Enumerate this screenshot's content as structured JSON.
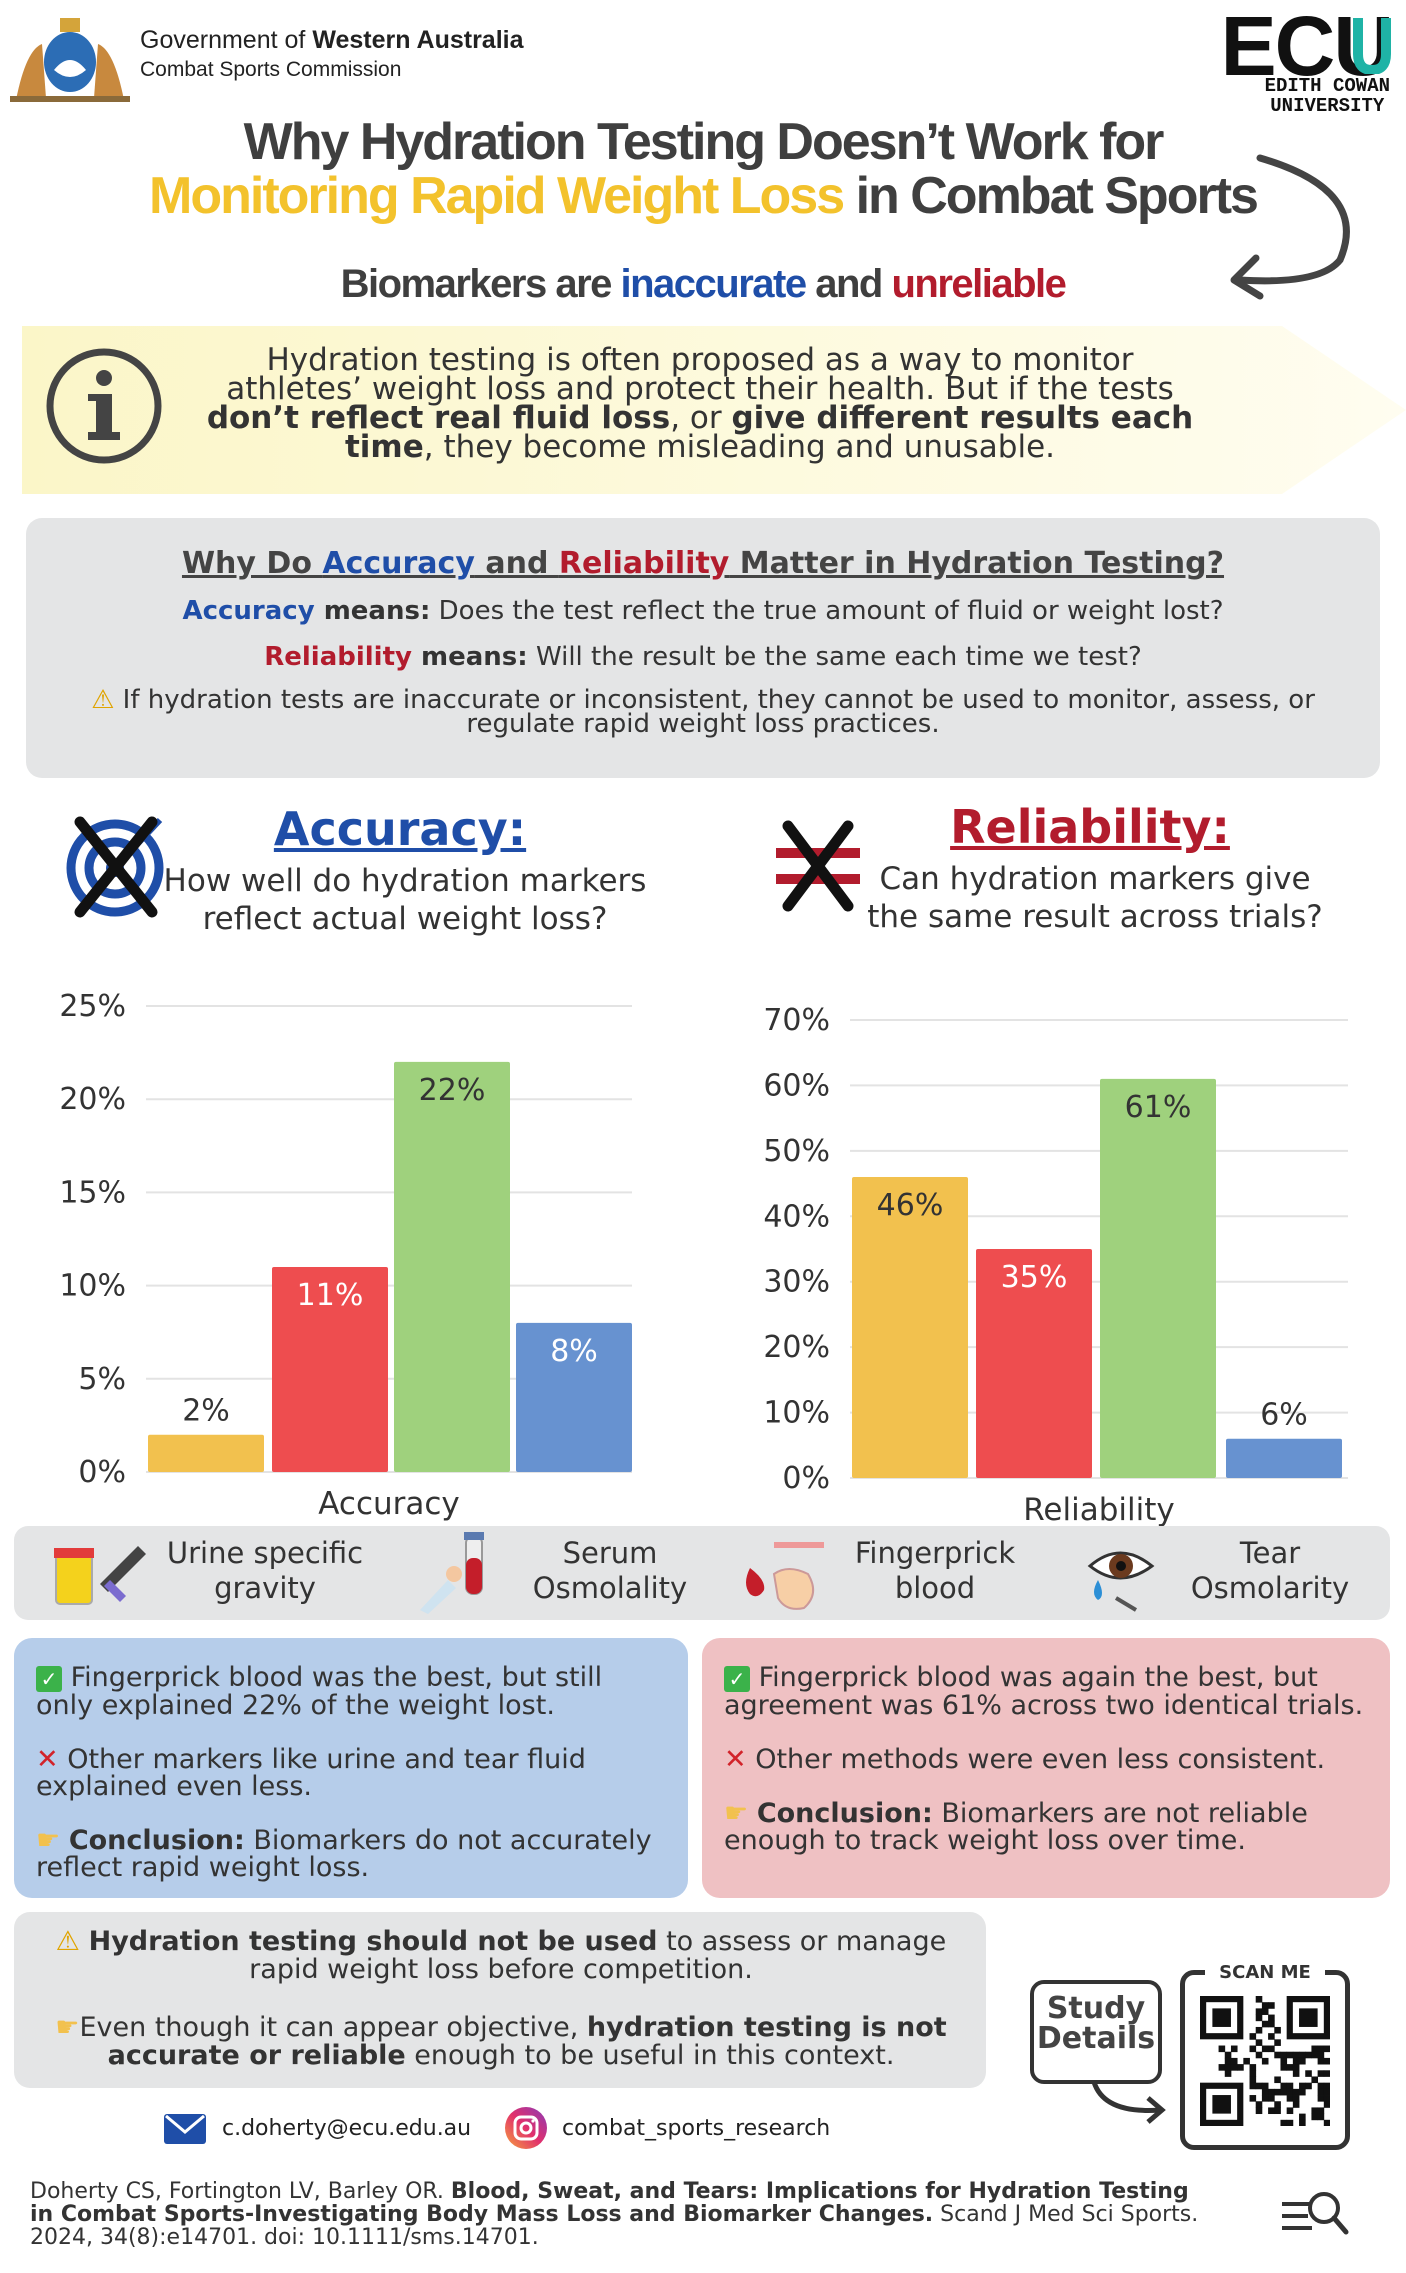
{
  "header": {
    "gov_prefix": "Government of ",
    "gov_bold": "Western Australia",
    "gov_dept": "Combat Sports Commission",
    "ecu_logo": "ECU",
    "ecu_name_1": "EDITH COWAN",
    "ecu_name_2": "UNIVERSITY"
  },
  "title": {
    "line1": "Why Hydration Testing Doesn’t Work for",
    "line2_highlight": "Monitoring Rapid Weight Loss",
    "line2_rest": " in Combat Sports"
  },
  "subtitle": {
    "part1": "Biomarkers are ",
    "part2": "inaccurate",
    "part3": " and ",
    "part4": "unreliable"
  },
  "info": {
    "t1": "Hydration testing is often proposed as a way to monitor athletes’ weight loss and protect their health. But if the tests ",
    "t2": "don’t reflect real fluid loss",
    "t3": ", or ",
    "t4": "give different results each time",
    "t5": ", they become misleading and unusable."
  },
  "why": {
    "h1": "Why Do ",
    "h2": "Accuracy",
    "h3": " and ",
    "h4": "Reliability",
    "h5": " Matter in Hydration Testing?",
    "acc_term": "Accuracy",
    "acc_means": " means:",
    "acc_text": " Does the test reflect the true amount of fluid or weight lost?",
    "rel_term": "Reliability",
    "rel_means": " means:",
    "rel_text": " Will the result be the same each time we test?",
    "warn_text": "If hydration tests are inaccurate or inconsistent, they cannot be used to monitor, assess, or regulate rapid weight loss practices."
  },
  "accuracy_section": {
    "title": "Accuracy:",
    "question_1": "How well do hydration markers",
    "question_2": "reflect actual weight loss?"
  },
  "reliability_section": {
    "title": "Reliability:",
    "question_1": "Can hydration markers give",
    "question_2": "the same result across trials?"
  },
  "chart_data": [
    {
      "type": "bar",
      "xlabel": "Accuracy",
      "yticks": [
        "0%",
        "5%",
        "10%",
        "15%",
        "20%",
        "25%"
      ],
      "ylim": [
        0,
        25
      ],
      "categories": [
        "Urine specific gravity",
        "Serum Osmolality",
        "Fingerprick blood",
        "Tear Osmolarity"
      ],
      "values": [
        2,
        11,
        22,
        8
      ],
      "labels": [
        "2%",
        "11%",
        "22%",
        "8%"
      ],
      "colors": [
        "#f2c14e",
        "#ee4d4f",
        "#9fd17d",
        "#6792d0"
      ]
    },
    {
      "type": "bar",
      "xlabel": "Reliability",
      "yticks": [
        "0%",
        "10%",
        "20%",
        "30%",
        "40%",
        "50%",
        "60%",
        "70%"
      ],
      "ylim": [
        0,
        70
      ],
      "categories": [
        "Urine specific gravity",
        "Serum Osmolality",
        "Fingerprick blood",
        "Tear Osmolarity"
      ],
      "values": [
        46,
        35,
        61,
        6
      ],
      "labels": [
        "46%",
        "35%",
        "61%",
        "6%"
      ],
      "colors": [
        "#f2c14e",
        "#ee4d4f",
        "#9fd17d",
        "#6792d0"
      ]
    }
  ],
  "legend": {
    "urine_1": "Urine specific",
    "urine_2": "gravity",
    "serum_1": "Serum",
    "serum_2": "Osmolality",
    "finger_1": "Fingerprick",
    "finger_2": "blood",
    "tear_1": "Tear",
    "tear_2": "Osmolarity"
  },
  "acc_box": {
    "l1": "Fingerprick blood was the best, but still only explained 22% of the weight lost.",
    "l2": "Other markers like urine and tear fluid explained even less.",
    "concl_label": "Conclusion:",
    "concl_text": " Biomarkers do not accurately reflect rapid weight loss."
  },
  "rel_box": {
    "l1": "Fingerprick blood was again the best, but agreement was 61% across two identical trials.",
    "l2": "Other methods were even less consistent.",
    "concl_label": "Conclusion:",
    "concl_text": " Biomarkers are not reliable enough to track weight loss over time."
  },
  "bottom": {
    "b1_bold": "Hydration testing should not be used",
    "b1_rest": " to assess or manage rapid weight loss before competition.",
    "b2_a": "Even though it can appear objective, ",
    "b2_bold1": "hydration testing is not accurate or reliable",
    "b2_b": " enough to be useful in this context."
  },
  "study": {
    "label_1": "Study",
    "label_2": "Details",
    "scan": "SCAN ME"
  },
  "contact": {
    "email": "c.doherty@ecu.edu.au",
    "instagram": "combat_sports_research"
  },
  "reference": {
    "authors": "Doherty CS, Fortington LV, Barley OR. ",
    "title": "Blood, Sweat, and Tears: Implications for Hydration Testing in Combat Sports-Investigating Body Mass Loss and Biomarker Changes.",
    "journal": " Scand J Med Sci Sports. 2024, 34(8):e14701. doi: 10.1111/sms.14701."
  },
  "colors": {
    "yellow": "#f2c14e",
    "red": "#ee4d4f",
    "green": "#9fd17d",
    "blue": "#6792d0",
    "accuracy_blue": "#1f4ea8",
    "reliability_red": "#b21c2d",
    "acc_box_bg": "#b6cdea",
    "rel_box_bg": "#efc1c3"
  }
}
